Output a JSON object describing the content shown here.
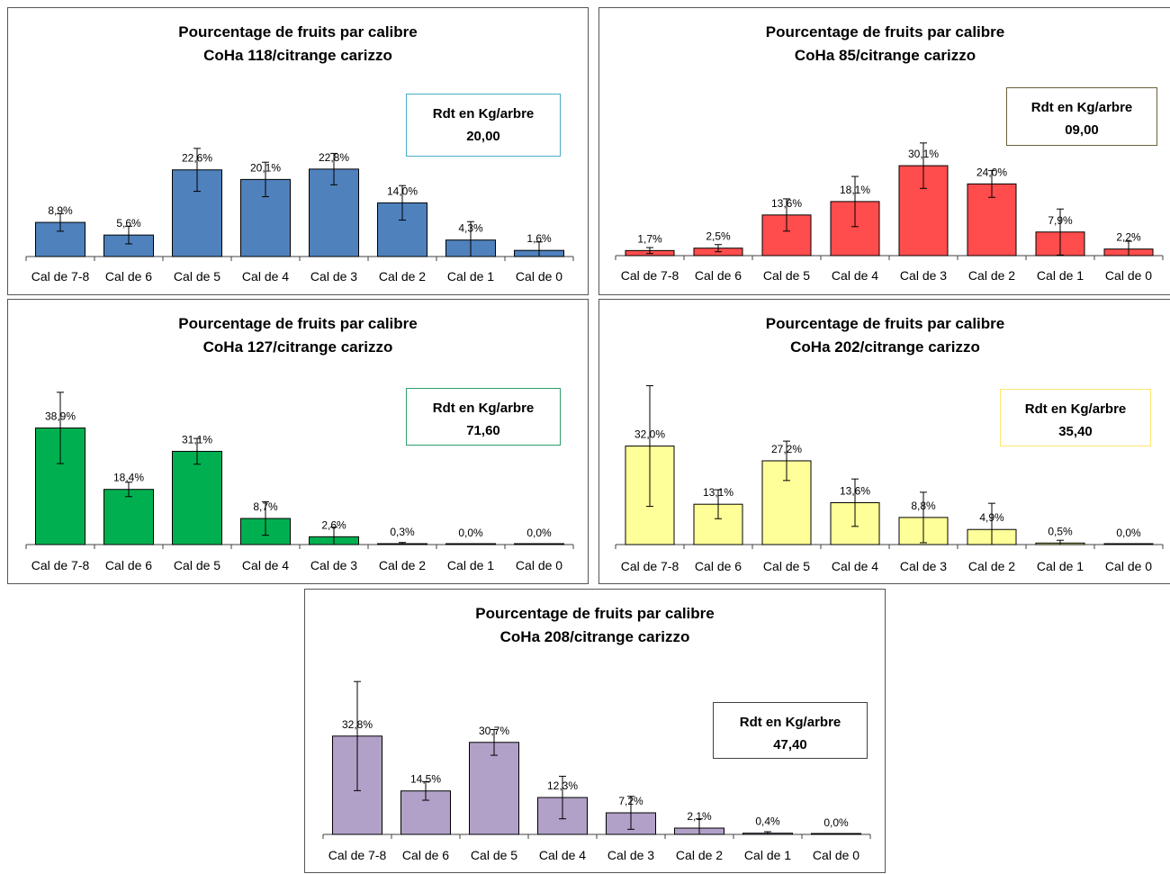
{
  "chart_data": [
    {
      "type": "bar",
      "title": "Pourcentage de fruits par calibre",
      "subtitle": "CoHa 118/citrange carizzo",
      "categories": [
        "Cal de 7-8",
        "Cal de 6",
        "Cal de 5",
        "Cal de 4",
        "Cal de 3",
        "Cal de 2",
        "Cal de 1",
        "Cal de 0"
      ],
      "values": [
        8.9,
        5.6,
        22.6,
        20.1,
        22.8,
        14.0,
        4.3,
        1.6
      ],
      "errors": [
        2.3,
        2.3,
        5.6,
        4.5,
        4.1,
        4.5,
        4.8,
        2.2
      ],
      "data_labels": [
        "8,9%",
        "5,6%",
        "22,6%",
        "20,1%",
        "22,8%",
        "14,0%",
        "4,3%",
        "1,6%"
      ],
      "bar_color": "#4F81BD",
      "yield_label": "Rdt en Kg/arbre",
      "yield_value": "20,00",
      "yield_border": "#4BACC6",
      "ylim": [
        0,
        45
      ]
    },
    {
      "type": "bar",
      "title": "Pourcentage de fruits par calibre",
      "subtitle": "CoHa 85/citrange carizzo",
      "categories": [
        "Cal de 7-8",
        "Cal de 6",
        "Cal de 5",
        "Cal de 4",
        "Cal de 3",
        "Cal de 2",
        "Cal de 1",
        "Cal de 0"
      ],
      "values": [
        1.7,
        2.5,
        13.6,
        18.1,
        30.1,
        24.0,
        7.9,
        2.2
      ],
      "errors": [
        1.0,
        1.2,
        5.4,
        8.4,
        7.6,
        4.5,
        7.7,
        2.6
      ],
      "data_labels": [
        "1,7%",
        "2,5%",
        "13,6%",
        "18,1%",
        "30,1%",
        "24,0%",
        "7,9%",
        "2,2%"
      ],
      "bar_color": "#FF4C4C",
      "yield_label": "Rdt en Kg/arbre",
      "yield_value": "09,00",
      "yield_border": "#6B5E3A",
      "ylim": [
        0,
        45
      ]
    },
    {
      "type": "bar",
      "title": "Pourcentage de fruits par calibre",
      "subtitle": "CoHa 127/citrange carizzo",
      "categories": [
        "Cal de 7-8",
        "Cal de 6",
        "Cal de 5",
        "Cal de 4",
        "Cal de 3",
        "Cal de 2",
        "Cal de 1",
        "Cal de 0"
      ],
      "values": [
        38.9,
        18.4,
        31.1,
        8.7,
        2.6,
        0.3,
        0.0,
        0.0
      ],
      "errors": [
        11.9,
        2.4,
        4.3,
        5.6,
        3.2,
        0.4,
        0.0,
        0.0
      ],
      "data_labels": [
        "38,9%",
        "18,4%",
        "31,1%",
        "8,7%",
        "2,6%",
        "0,3%",
        "0,0%",
        "0,0%"
      ],
      "bar_color": "#00B050",
      "yield_label": "Rdt en Kg/arbre",
      "yield_value": "71,60",
      "yield_border": "#2E9E6A",
      "ylim": [
        0,
        50
      ]
    },
    {
      "type": "bar",
      "title": "Pourcentage de fruits par calibre",
      "subtitle": "CoHa 202/citrange carizzo",
      "categories": [
        "Cal de 7-8",
        "Cal de 6",
        "Cal de 5",
        "Cal de 4",
        "Cal de 3",
        "Cal de 2",
        "Cal de 1",
        "Cal de 0"
      ],
      "values": [
        32.0,
        13.1,
        27.2,
        13.6,
        8.8,
        4.9,
        0.5,
        0.0
      ],
      "errors": [
        19.6,
        4.7,
        6.4,
        7.7,
        8.2,
        8.5,
        0.9,
        0.0
      ],
      "data_labels": [
        "32,0%",
        "13,1%",
        "27,2%",
        "13,6%",
        "8,8%",
        "4,9%",
        "0,5%",
        "0,0%"
      ],
      "bar_color": "#FFFF99",
      "yield_label": "Rdt en Kg/arbre",
      "yield_value": "35,40",
      "yield_border": "#FFE670",
      "ylim": [
        0,
        50
      ]
    },
    {
      "type": "bar",
      "title": "Pourcentage de fruits par calibre",
      "subtitle": "CoHa 208/citrange carizzo",
      "categories": [
        "Cal de 7-8",
        "Cal de 6",
        "Cal de 5",
        "Cal de 4",
        "Cal de 3",
        "Cal de 2",
        "Cal de 1",
        "Cal de 0"
      ],
      "values": [
        32.8,
        14.5,
        30.7,
        12.3,
        7.2,
        2.1,
        0.4,
        0.0
      ],
      "errors": [
        18.2,
        3.1,
        4.3,
        7.1,
        5.5,
        3.1,
        0.5,
        0.0
      ],
      "data_labels": [
        "32,8%",
        "14,5%",
        "30,7%",
        "12,3%",
        "7,2%",
        "2,1%",
        "0,4%",
        "0,0%"
      ],
      "bar_color": "#B1A0C7",
      "yield_label": "Rdt en Kg/arbre",
      "yield_value": "47,40",
      "yield_border": "#404040",
      "ylim": [
        0,
        50
      ]
    }
  ]
}
